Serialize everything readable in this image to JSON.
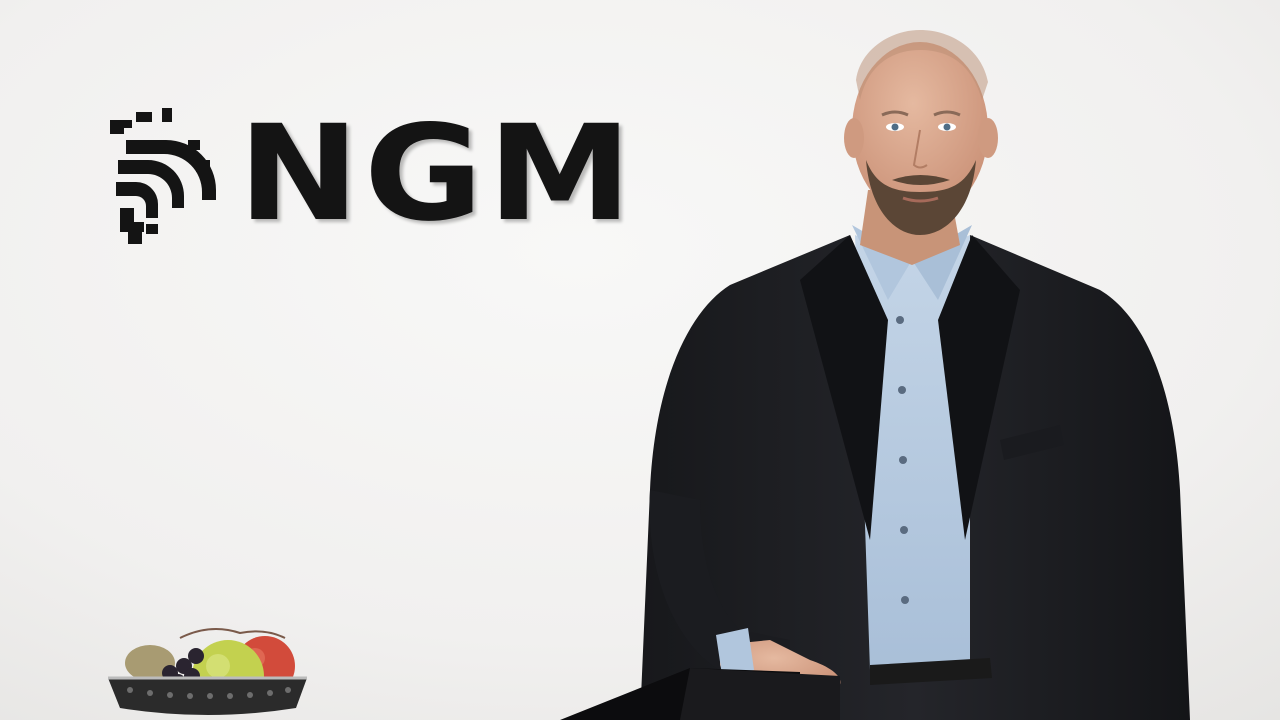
{
  "scene": {
    "brand": {
      "wordmark": "NGM"
    },
    "colors": {
      "wall": "#f2f1f0",
      "wall_shade": "#e6e5e3",
      "logo": "#141414",
      "suit": "#1d1e21",
      "shirt": "#b7cbe0",
      "skin": "#d9a88f",
      "beard": "#5b4636",
      "table": "#0c0c0e",
      "apple_red": "#d24b3b",
      "apple_green": "#c3d14f",
      "grapes": "#2a2430",
      "bowl": "#2b2b2b"
    },
    "icons": {
      "logo_mark": "globe-sphere-icon"
    }
  }
}
